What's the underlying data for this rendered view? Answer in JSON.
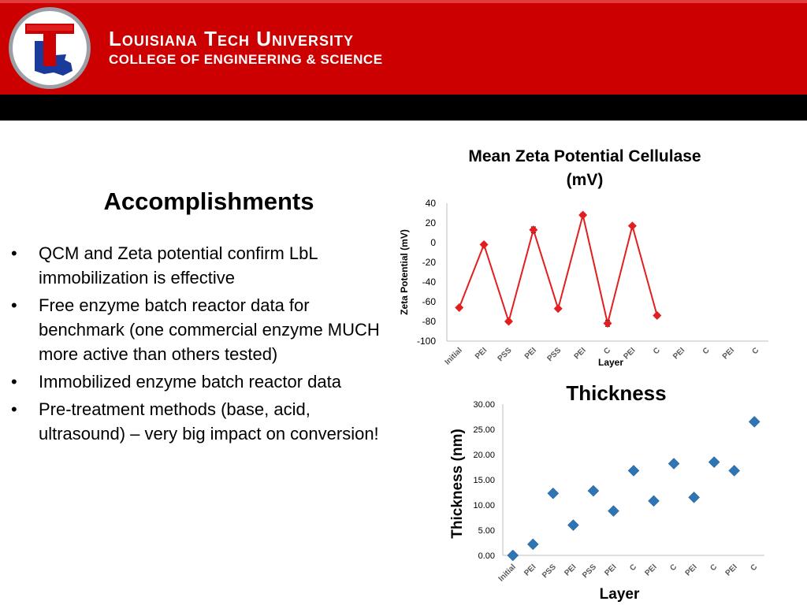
{
  "header": {
    "university": "Louisiana Tech University",
    "college": "COLLEGE OF ENGINEERING & SCIENCE",
    "logo_letter": "T",
    "colors": {
      "red": "#cc0000",
      "blue": "#1a3a9c",
      "black": "#000000"
    }
  },
  "slide": {
    "heading": "Accomplishments",
    "bullets": [
      "QCM and Zeta potential confirm LbL immobilization is effective",
      "Free enzyme batch reactor data for benchmark (one commercial enzyme MUCH more active than others tested)",
      "Immobilized enzyme batch reactor data",
      "Pre-treatment methods (base, acid, ultrasound) – very big impact on conversion!"
    ]
  },
  "chart_data": [
    {
      "type": "line",
      "title": "Mean Zeta Potential Cellulase (mV)",
      "title_lines": [
        "Mean Zeta Potential Cellulase",
        "(mV)"
      ],
      "xlabel": "Layer",
      "ylabel": "Zeta Potential (mV)",
      "ylim": [
        -100,
        40
      ],
      "yticks": [
        40,
        20,
        0,
        -20,
        -40,
        -60,
        -80,
        -100
      ],
      "categories": [
        "Initial",
        "PEI",
        "PSS",
        "PEI",
        "PSS",
        "PEI",
        "C",
        "PEI",
        "C",
        "PEI",
        "C",
        "PEI",
        "C"
      ],
      "values": [
        -66,
        -2,
        -80,
        13,
        -67,
        28,
        -82,
        17,
        -74,
        null,
        null,
        null,
        null
      ],
      "errors": [
        0,
        2,
        2,
        3,
        0,
        2,
        3,
        0,
        2,
        null,
        null,
        null,
        null
      ],
      "color": "#e31e1e",
      "marker": "diamond",
      "grid": false
    },
    {
      "type": "scatter",
      "title": "Thickness",
      "xlabel": "Layer",
      "ylabel": "Thickness (nm)",
      "ylim": [
        0,
        30
      ],
      "yticks": [
        "30.00",
        "25.00",
        "20.00",
        "15.00",
        "10.00",
        "5.00",
        "0.00"
      ],
      "categories": [
        "Initial",
        "PEI",
        "PSS",
        "PEI",
        "PSS",
        "PEI",
        "C",
        "PEI",
        "C",
        "PEI",
        "C",
        "PEI",
        "C"
      ],
      "values": [
        0.0,
        2.2,
        12.3,
        6.0,
        12.8,
        8.8,
        16.8,
        10.8,
        18.2,
        11.5,
        18.5,
        16.8,
        26.5
      ],
      "color": "#2e75b6",
      "marker": "diamond",
      "grid": false
    }
  ]
}
